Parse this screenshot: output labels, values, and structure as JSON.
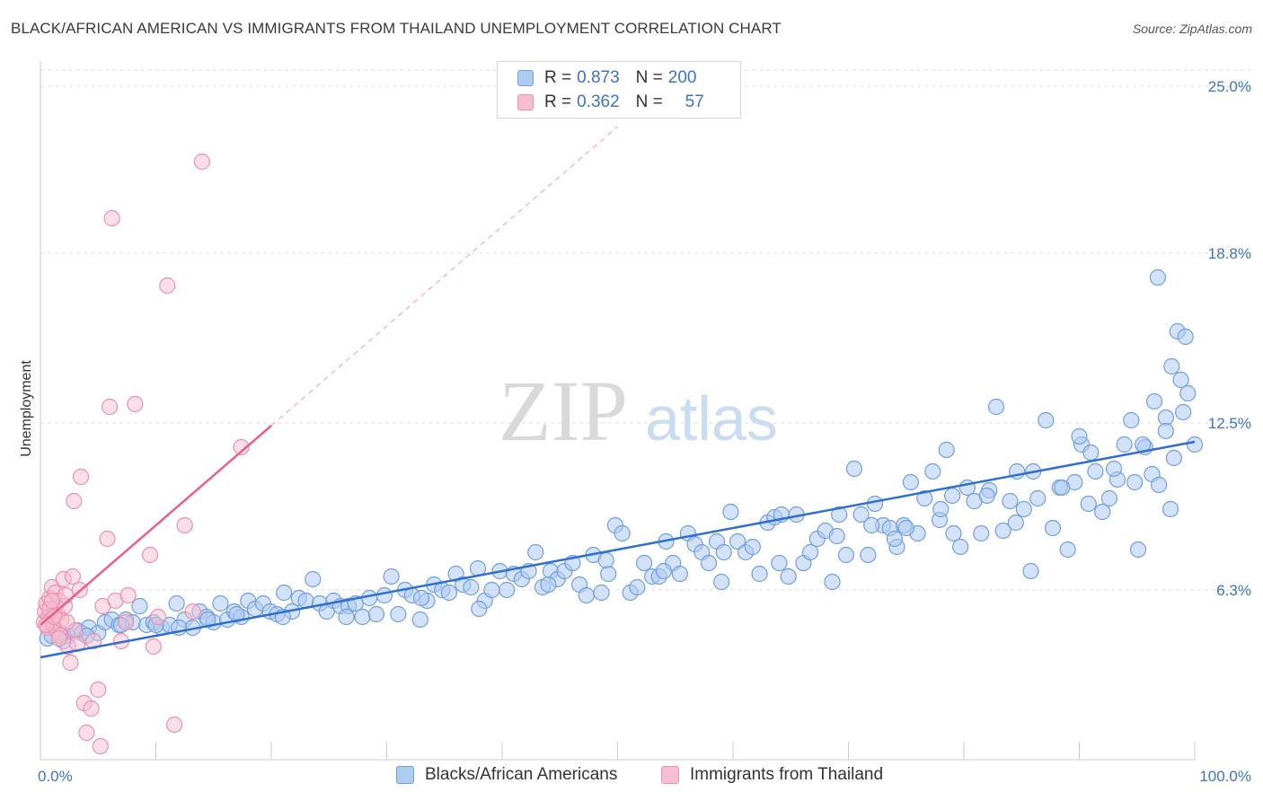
{
  "title": "BLACK/AFRICAN AMERICAN VS IMMIGRANTS FROM THAILAND UNEMPLOYMENT CORRELATION CHART",
  "source": "Source: ZipAtlas.com",
  "watermark": {
    "zip": "ZIP",
    "atlas": "atlas"
  },
  "legend": {
    "blue": {
      "r_label": "R =",
      "r_value": "0.873",
      "n_label": "N =",
      "n_value": "200"
    },
    "pink": {
      "r_label": "R =",
      "r_value": "0.362",
      "n_label": "N =",
      "n_value": "57"
    }
  },
  "colors": {
    "blue_fill": "#aecbf0",
    "blue_stroke": "#6f9fdd",
    "blue_line": "#2f6fd0",
    "pink_fill": "#f6bfd0",
    "pink_stroke": "#ec8fb0",
    "pink_line": "#e8608b",
    "grid": "#dddddd",
    "tick_text": "#3b74c8"
  },
  "chart_data": {
    "type": "scatter",
    "title": "BLACK/AFRICAN AMERICAN VS IMMIGRANTS FROM THAILAND UNEMPLOYMENT CORRELATION CHART",
    "xlabel": "",
    "ylabel": "Unemployment",
    "xlim": [
      0,
      100
    ],
    "ylim": [
      0,
      25.6
    ],
    "x_tick_labels": [
      "0.0%",
      "100.0%"
    ],
    "y_ticks": [
      6.3,
      12.5,
      18.8,
      25.0
    ],
    "y_tick_labels": [
      "6.3%",
      "12.5%",
      "18.8%",
      "25.0%"
    ],
    "grid": "horizontal dashed",
    "series": [
      {
        "name": "Blacks/African Americans",
        "color": "blue",
        "R": 0.873,
        "N": 200,
        "trend": {
          "x": [
            0,
            100
          ],
          "y": [
            3.8,
            11.8
          ]
        },
        "points": [
          [
            0.6,
            4.5
          ],
          [
            1.0,
            4.6
          ],
          [
            1.8,
            4.7
          ],
          [
            2.4,
            4.6
          ],
          [
            3.2,
            4.8
          ],
          [
            3.6,
            4.7
          ],
          [
            4.2,
            4.9
          ],
          [
            5.0,
            4.7
          ],
          [
            5.6,
            5.1
          ],
          [
            6.2,
            5.2
          ],
          [
            6.8,
            5.0
          ],
          [
            7.4,
            5.2
          ],
          [
            8.0,
            5.1
          ],
          [
            8.6,
            5.7
          ],
          [
            9.2,
            5.0
          ],
          [
            9.8,
            5.1
          ],
          [
            10.5,
            4.9
          ],
          [
            11.2,
            5.0
          ],
          [
            11.8,
            5.8
          ],
          [
            12.5,
            5.2
          ],
          [
            13.2,
            4.9
          ],
          [
            13.8,
            5.5
          ],
          [
            14.4,
            5.3
          ],
          [
            15.0,
            5.1
          ],
          [
            15.6,
            5.8
          ],
          [
            16.2,
            5.2
          ],
          [
            16.8,
            5.5
          ],
          [
            17.4,
            5.3
          ],
          [
            18.0,
            5.9
          ],
          [
            18.6,
            5.6
          ],
          [
            19.3,
            5.8
          ],
          [
            19.9,
            5.5
          ],
          [
            20.5,
            5.4
          ],
          [
            21.1,
            6.2
          ],
          [
            21.8,
            5.5
          ],
          [
            22.4,
            6.0
          ],
          [
            23.0,
            5.9
          ],
          [
            23.6,
            6.7
          ],
          [
            24.2,
            5.8
          ],
          [
            24.8,
            5.5
          ],
          [
            25.4,
            5.9
          ],
          [
            26.0,
            5.7
          ],
          [
            26.7,
            5.7
          ],
          [
            27.3,
            5.8
          ],
          [
            27.9,
            5.3
          ],
          [
            28.5,
            6.0
          ],
          [
            29.1,
            5.4
          ],
          [
            29.8,
            6.1
          ],
          [
            30.4,
            6.8
          ],
          [
            31.0,
            5.4
          ],
          [
            31.6,
            6.3
          ],
          [
            32.2,
            6.1
          ],
          [
            32.9,
            5.2
          ],
          [
            33.5,
            5.9
          ],
          [
            34.1,
            6.5
          ],
          [
            34.8,
            6.3
          ],
          [
            35.4,
            6.2
          ],
          [
            36.0,
            6.9
          ],
          [
            36.6,
            6.5
          ],
          [
            37.3,
            6.4
          ],
          [
            37.9,
            7.1
          ],
          [
            38.5,
            5.9
          ],
          [
            39.1,
            6.3
          ],
          [
            39.8,
            7.0
          ],
          [
            40.4,
            6.3
          ],
          [
            41.0,
            6.9
          ],
          [
            41.7,
            6.7
          ],
          [
            42.3,
            7.0
          ],
          [
            42.9,
            7.7
          ],
          [
            43.5,
            6.4
          ],
          [
            44.2,
            7.0
          ],
          [
            44.8,
            6.7
          ],
          [
            45.4,
            7.0
          ],
          [
            46.1,
            7.3
          ],
          [
            46.7,
            6.5
          ],
          [
            47.3,
            6.1
          ],
          [
            47.9,
            7.6
          ],
          [
            48.6,
            6.2
          ],
          [
            49.2,
            6.9
          ],
          [
            49.8,
            8.7
          ],
          [
            50.4,
            8.4
          ],
          [
            51.1,
            6.2
          ],
          [
            51.7,
            6.4
          ],
          [
            52.3,
            7.3
          ],
          [
            53.0,
            6.8
          ],
          [
            53.6,
            6.8
          ],
          [
            54.2,
            8.1
          ],
          [
            54.8,
            7.3
          ],
          [
            55.4,
            6.9
          ],
          [
            56.1,
            8.4
          ],
          [
            56.7,
            8.0
          ],
          [
            57.3,
            7.7
          ],
          [
            57.9,
            7.3
          ],
          [
            58.6,
            8.1
          ],
          [
            59.2,
            7.7
          ],
          [
            59.8,
            9.2
          ],
          [
            60.4,
            8.1
          ],
          [
            61.1,
            7.7
          ],
          [
            61.7,
            7.9
          ],
          [
            62.3,
            6.9
          ],
          [
            63.0,
            8.8
          ],
          [
            63.6,
            9.0
          ],
          [
            64.2,
            9.1
          ],
          [
            64.8,
            6.8
          ],
          [
            65.5,
            9.1
          ],
          [
            66.1,
            7.3
          ],
          [
            66.7,
            7.7
          ],
          [
            67.3,
            8.2
          ],
          [
            68.0,
            8.5
          ],
          [
            68.6,
            6.6
          ],
          [
            69.2,
            9.1
          ],
          [
            69.8,
            7.6
          ],
          [
            70.5,
            10.8
          ],
          [
            71.1,
            9.1
          ],
          [
            71.7,
            7.6
          ],
          [
            72.3,
            9.5
          ],
          [
            73.0,
            8.7
          ],
          [
            73.6,
            8.6
          ],
          [
            74.2,
            7.9
          ],
          [
            74.8,
            8.7
          ],
          [
            75.4,
            10.3
          ],
          [
            76.0,
            8.4
          ],
          [
            76.6,
            9.7
          ],
          [
            77.3,
            10.7
          ],
          [
            77.9,
            8.9
          ],
          [
            78.5,
            11.5
          ],
          [
            79.1,
            8.4
          ],
          [
            79.7,
            7.9
          ],
          [
            80.3,
            10.1
          ],
          [
            80.9,
            9.6
          ],
          [
            81.5,
            8.4
          ],
          [
            82.2,
            10.0
          ],
          [
            82.8,
            13.1
          ],
          [
            83.4,
            8.5
          ],
          [
            84.0,
            9.6
          ],
          [
            84.6,
            10.7
          ],
          [
            85.2,
            9.3
          ],
          [
            85.8,
            7.0
          ],
          [
            86.4,
            9.7
          ],
          [
            87.1,
            12.6
          ],
          [
            87.7,
            8.6
          ],
          [
            88.3,
            10.1
          ],
          [
            89.0,
            7.8
          ],
          [
            89.6,
            10.3
          ],
          [
            90.2,
            11.7
          ],
          [
            90.8,
            9.5
          ],
          [
            91.4,
            10.7
          ],
          [
            92.0,
            9.2
          ],
          [
            92.6,
            9.7
          ],
          [
            93.3,
            10.4
          ],
          [
            93.9,
            11.7
          ],
          [
            94.5,
            12.6
          ],
          [
            95.1,
            7.8
          ],
          [
            95.7,
            11.6
          ],
          [
            96.3,
            10.6
          ],
          [
            96.9,
            10.2
          ],
          [
            97.5,
            12.7
          ],
          [
            98.2,
            11.2
          ],
          [
            98.8,
            14.1
          ],
          [
            99.4,
            13.6
          ],
          [
            100.0,
            11.7
          ],
          [
            2.0,
            4.4
          ],
          [
            4.0,
            4.6
          ],
          [
            7.0,
            5.0
          ],
          [
            10.0,
            5.0
          ],
          [
            12.0,
            4.9
          ],
          [
            14.5,
            5.2
          ],
          [
            17.0,
            5.4
          ],
          [
            21.0,
            5.3
          ],
          [
            26.5,
            5.3
          ],
          [
            33.0,
            6.0
          ],
          [
            38.0,
            5.6
          ],
          [
            44.0,
            6.5
          ],
          [
            49.0,
            7.4
          ],
          [
            54.0,
            7.0
          ],
          [
            59.0,
            6.6
          ],
          [
            64.0,
            7.3
          ],
          [
            69.0,
            8.3
          ],
          [
            74.0,
            8.2
          ],
          [
            79.0,
            9.8
          ],
          [
            84.5,
            8.8
          ],
          [
            88.5,
            10.1
          ],
          [
            91.0,
            11.4
          ],
          [
            93.0,
            10.8
          ],
          [
            94.8,
            10.3
          ],
          [
            95.5,
            11.7
          ],
          [
            96.5,
            13.3
          ],
          [
            97.5,
            12.2
          ],
          [
            98.0,
            14.6
          ],
          [
            98.5,
            15.9
          ],
          [
            99.2,
            15.7
          ],
          [
            97.9,
            9.3
          ],
          [
            99.0,
            12.9
          ],
          [
            96.8,
            17.9
          ],
          [
            90.0,
            12.0
          ],
          [
            86.0,
            10.7
          ],
          [
            82.0,
            9.8
          ],
          [
            78.0,
            9.3
          ],
          [
            75.0,
            8.6
          ],
          [
            72.0,
            8.7
          ]
        ]
      },
      {
        "name": "Immigrants from Thailand",
        "color": "pink",
        "R": 0.362,
        "N": 57,
        "trend": {
          "x": [
            0,
            20
          ],
          "y": [
            5.0,
            12.4
          ],
          "dashed_extension": {
            "x": [
              20,
              50
            ],
            "y": [
              12.4,
              23.5
            ]
          }
        },
        "points": [
          [
            0.3,
            5.1
          ],
          [
            0.4,
            5.5
          ],
          [
            0.5,
            5.8
          ],
          [
            0.6,
            4.9
          ],
          [
            0.7,
            5.3
          ],
          [
            0.8,
            6.0
          ],
          [
            0.9,
            5.2
          ],
          [
            1.0,
            6.4
          ],
          [
            1.1,
            5.0
          ],
          [
            1.2,
            5.6
          ],
          [
            1.3,
            6.2
          ],
          [
            1.4,
            4.8
          ],
          [
            1.5,
            5.4
          ],
          [
            1.6,
            5.9
          ],
          [
            1.7,
            4.6
          ],
          [
            1.8,
            5.2
          ],
          [
            2.0,
            6.7
          ],
          [
            2.1,
            5.7
          ],
          [
            2.2,
            6.1
          ],
          [
            2.4,
            4.2
          ],
          [
            2.6,
            3.6
          ],
          [
            2.8,
            6.8
          ],
          [
            3.0,
            4.8
          ],
          [
            3.2,
            4.3
          ],
          [
            3.5,
            10.5
          ],
          [
            3.8,
            2.1
          ],
          [
            4.0,
            1.0
          ],
          [
            4.4,
            1.9
          ],
          [
            5.0,
            2.6
          ],
          [
            5.4,
            5.7
          ],
          [
            5.8,
            8.2
          ],
          [
            6.0,
            13.1
          ],
          [
            6.5,
            5.9
          ],
          [
            7.0,
            4.4
          ],
          [
            7.4,
            5.1
          ],
          [
            9.5,
            7.6
          ],
          [
            9.8,
            4.2
          ],
          [
            10.2,
            5.3
          ],
          [
            11.0,
            17.6
          ],
          [
            11.6,
            1.3
          ],
          [
            12.5,
            8.7
          ],
          [
            13.2,
            5.5
          ],
          [
            14.0,
            22.2
          ],
          [
            17.4,
            11.6
          ],
          [
            0.5,
            5.0
          ],
          [
            0.8,
            5.6
          ],
          [
            1.2,
            5.3
          ],
          [
            1.6,
            4.5
          ],
          [
            2.3,
            5.1
          ],
          [
            2.9,
            9.6
          ],
          [
            3.4,
            6.3
          ],
          [
            5.2,
            0.5
          ],
          [
            6.2,
            20.1
          ],
          [
            7.6,
            6.1
          ],
          [
            8.2,
            13.2
          ],
          [
            4.6,
            4.4
          ],
          [
            1.0,
            5.9
          ]
        ]
      }
    ]
  },
  "bottom_legend": {
    "blue_label": "Blacks/African Americans",
    "pink_label": "Immigrants from Thailand"
  }
}
